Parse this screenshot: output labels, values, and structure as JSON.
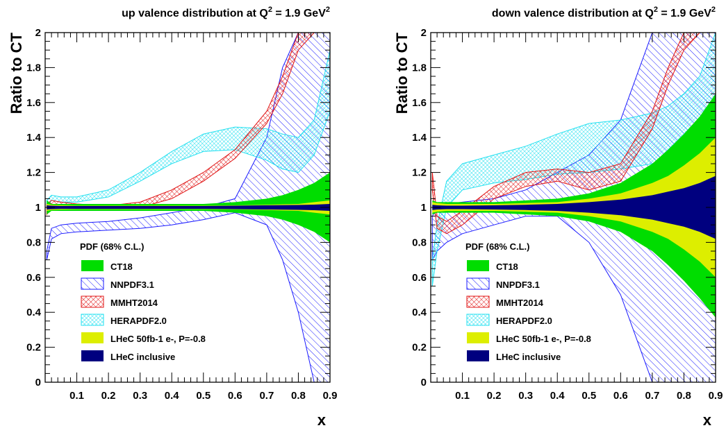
{
  "chart_data": [
    {
      "type": "area",
      "title": "up valence distribution at Q² = 1.9 GeV²",
      "title_parts": [
        "up valence distribution at Q",
        "2",
        " = 1.9 GeV",
        "2"
      ],
      "xlabel": "x",
      "ylabel": "Ratio to CT",
      "xlim": [
        0,
        0.9
      ],
      "ylim": [
        0,
        2
      ],
      "x_ticks": [
        0.1,
        0.2,
        0.3,
        0.4,
        0.5,
        0.6,
        0.7,
        0.8,
        0.9
      ],
      "y_ticks": [
        0,
        0.2,
        0.4,
        0.6,
        0.8,
        1,
        1.2,
        1.4,
        1.6,
        1.8,
        2
      ],
      "grid": false,
      "legend_position": "bottom-left",
      "legend_title": "PDF (68% C.L.)",
      "x": [
        0.005,
        0.02,
        0.05,
        0.1,
        0.2,
        0.3,
        0.4,
        0.5,
        0.6,
        0.7,
        0.75,
        0.8,
        0.85,
        0.9
      ],
      "series": [
        {
          "name": "CT18",
          "color": "#00dd00",
          "pattern": "solid",
          "upper": [
            1.04,
            1.02,
            1.02,
            1.02,
            1.02,
            1.02,
            1.02,
            1.02,
            1.03,
            1.05,
            1.07,
            1.1,
            1.14,
            1.2
          ],
          "lower": [
            0.96,
            0.98,
            0.98,
            0.98,
            0.98,
            0.98,
            0.98,
            0.98,
            0.97,
            0.95,
            0.93,
            0.9,
            0.86,
            0.8
          ]
        },
        {
          "name": "NNPDF3.1",
          "color": "#1a1aff",
          "pattern": "hatch",
          "upper": [
            0.75,
            0.88,
            0.9,
            0.91,
            0.92,
            0.94,
            0.97,
            1.0,
            1.05,
            1.4,
            1.8,
            2.0,
            2.0,
            2.0
          ],
          "lower": [
            0.7,
            0.82,
            0.85,
            0.86,
            0.87,
            0.88,
            0.9,
            0.93,
            0.97,
            0.9,
            0.7,
            0.4,
            0.0,
            0.0
          ]
        },
        {
          "name": "MMHT2014",
          "color": "#e01010",
          "pattern": "crosshatch",
          "upper": [
            1.02,
            1.04,
            1.03,
            1.02,
            1.01,
            1.03,
            1.1,
            1.2,
            1.33,
            1.55,
            1.75,
            2.0,
            2.0,
            2.0
          ],
          "lower": [
            0.96,
            1.0,
            0.99,
            0.99,
            0.99,
            1.0,
            1.05,
            1.15,
            1.28,
            1.48,
            1.65,
            1.9,
            2.0,
            2.0
          ]
        },
        {
          "name": "HERAPDF2.0",
          "color": "#22e0f0",
          "pattern": "crosshatch",
          "upper": [
            1.04,
            1.07,
            1.06,
            1.06,
            1.1,
            1.2,
            1.32,
            1.42,
            1.46,
            1.45,
            1.42,
            1.4,
            1.5,
            1.9
          ],
          "lower": [
            1.0,
            1.04,
            1.03,
            1.03,
            1.06,
            1.15,
            1.25,
            1.32,
            1.33,
            1.27,
            1.22,
            1.2,
            1.3,
            1.55
          ]
        },
        {
          "name": "LHeC 50fb-1 e-, P=-0.8",
          "color": "#ddee00",
          "pattern": "solid",
          "upper": [
            1.02,
            1.015,
            1.012,
            1.01,
            1.01,
            1.01,
            1.01,
            1.01,
            1.012,
            1.015,
            1.018,
            1.02,
            1.03,
            1.04
          ],
          "lower": [
            0.98,
            0.985,
            0.988,
            0.99,
            0.99,
            0.99,
            0.99,
            0.99,
            0.988,
            0.985,
            0.982,
            0.98,
            0.97,
            0.96
          ]
        },
        {
          "name": "LHeC inclusive",
          "color": "#00007f",
          "pattern": "solid",
          "upper": [
            1.012,
            1.01,
            1.008,
            1.008,
            1.008,
            1.008,
            1.008,
            1.008,
            1.01,
            1.012,
            1.013,
            1.014,
            1.016,
            1.02
          ],
          "lower": [
            0.988,
            0.99,
            0.992,
            0.992,
            0.992,
            0.992,
            0.992,
            0.992,
            0.99,
            0.988,
            0.987,
            0.986,
            0.984,
            0.98
          ]
        }
      ]
    },
    {
      "type": "area",
      "title": "down valence distribution at Q² = 1.9 GeV²",
      "title_parts": [
        "down valence distribution at Q",
        "2",
        " = 1.9 GeV",
        "2"
      ],
      "xlabel": "x",
      "ylabel": "Ratio to CT",
      "xlim": [
        0,
        0.9
      ],
      "ylim": [
        0,
        2
      ],
      "x_ticks": [
        0.1,
        0.2,
        0.3,
        0.4,
        0.5,
        0.6,
        0.7,
        0.8,
        0.9
      ],
      "y_ticks": [
        0,
        0.2,
        0.4,
        0.6,
        0.8,
        1,
        1.2,
        1.4,
        1.6,
        1.8,
        2
      ],
      "grid": false,
      "legend_position": "bottom-left",
      "legend_title": "PDF (68% C.L.)",
      "x": [
        0.005,
        0.02,
        0.05,
        0.1,
        0.2,
        0.3,
        0.4,
        0.5,
        0.6,
        0.7,
        0.75,
        0.8,
        0.85,
        0.9
      ],
      "series": [
        {
          "name": "CT18",
          "color": "#00dd00",
          "pattern": "solid",
          "upper": [
            1.04,
            1.03,
            1.03,
            1.03,
            1.03,
            1.04,
            1.05,
            1.08,
            1.14,
            1.25,
            1.33,
            1.42,
            1.52,
            1.65
          ],
          "lower": [
            0.96,
            0.97,
            0.97,
            0.97,
            0.97,
            0.96,
            0.95,
            0.92,
            0.86,
            0.75,
            0.67,
            0.58,
            0.48,
            0.37
          ]
        },
        {
          "name": "NNPDF3.1",
          "color": "#1a1aff",
          "pattern": "hatch",
          "upper": [
            0.95,
            1.0,
            1.02,
            1.03,
            1.05,
            1.1,
            1.2,
            1.3,
            1.5,
            2.0,
            2.0,
            2.0,
            2.0,
            2.0
          ],
          "lower": [
            0.7,
            0.75,
            0.8,
            0.85,
            0.9,
            0.95,
            0.95,
            0.8,
            0.5,
            0.0,
            0.0,
            0.0,
            0.0,
            0.0
          ]
        },
        {
          "name": "MMHT2014",
          "color": "#e01010",
          "pattern": "crosshatch",
          "upper": [
            1.2,
            0.95,
            0.92,
            0.98,
            1.12,
            1.2,
            1.22,
            1.2,
            1.25,
            1.55,
            1.8,
            2.0,
            2.0,
            2.0
          ],
          "lower": [
            1.1,
            0.88,
            0.85,
            0.9,
            1.05,
            1.12,
            1.15,
            1.1,
            1.15,
            1.45,
            1.7,
            1.9,
            2.0,
            2.0
          ]
        },
        {
          "name": "HERAPDF2.0",
          "color": "#22e0f0",
          "pattern": "crosshatch",
          "upper": [
            0.7,
            0.9,
            1.15,
            1.25,
            1.3,
            1.35,
            1.42,
            1.48,
            1.5,
            1.54,
            1.58,
            1.65,
            1.75,
            2.0
          ],
          "lower": [
            0.55,
            0.75,
            1.0,
            1.1,
            1.14,
            1.16,
            1.19,
            1.2,
            1.22,
            1.25,
            1.28,
            1.32,
            1.38,
            1.5
          ]
        },
        {
          "name": "LHeC 50fb-1 e-, P=-0.8",
          "color": "#ddee00",
          "pattern": "solid",
          "upper": [
            1.03,
            1.025,
            1.02,
            1.02,
            1.02,
            1.025,
            1.03,
            1.05,
            1.08,
            1.14,
            1.18,
            1.24,
            1.31,
            1.4
          ],
          "lower": [
            0.97,
            0.975,
            0.98,
            0.98,
            0.98,
            0.975,
            0.97,
            0.95,
            0.92,
            0.86,
            0.82,
            0.76,
            0.69,
            0.6
          ]
        },
        {
          "name": "LHeC inclusive",
          "color": "#00007f",
          "pattern": "solid",
          "upper": [
            1.015,
            1.012,
            1.01,
            1.01,
            1.012,
            1.015,
            1.02,
            1.03,
            1.045,
            1.07,
            1.09,
            1.11,
            1.14,
            1.18
          ],
          "lower": [
            0.985,
            0.988,
            0.99,
            0.99,
            0.988,
            0.985,
            0.98,
            0.97,
            0.955,
            0.93,
            0.91,
            0.89,
            0.86,
            0.82
          ]
        }
      ]
    }
  ]
}
